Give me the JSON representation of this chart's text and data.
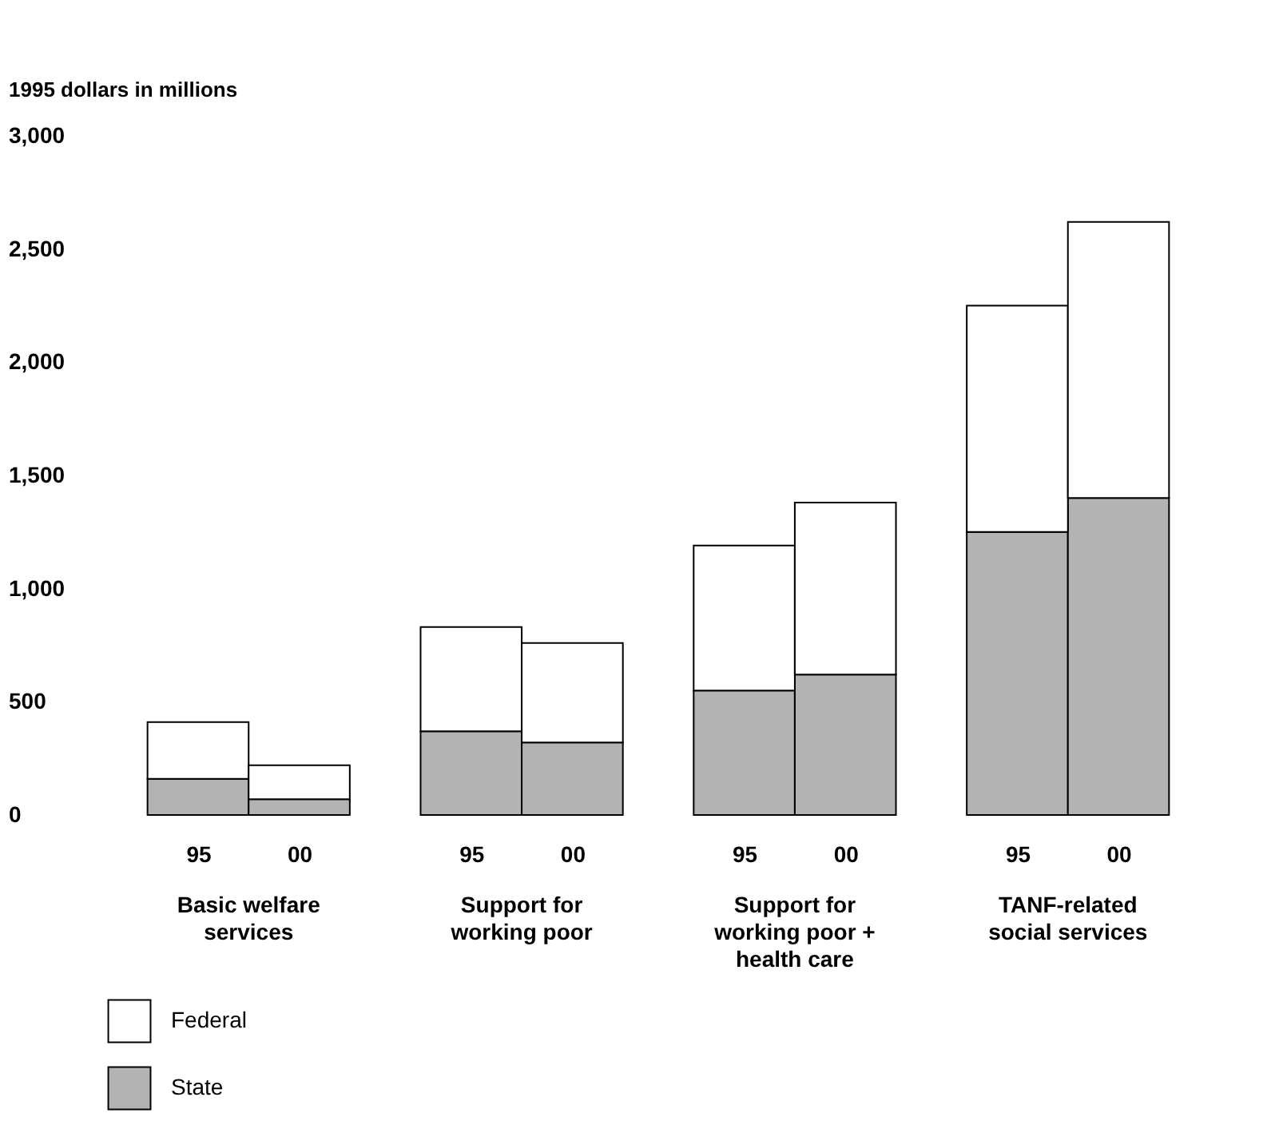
{
  "chart_data": {
    "type": "bar",
    "ylabel": "1995 dollars in millions",
    "categories": [
      "95",
      "00",
      "95",
      "00",
      "95",
      "00",
      "95",
      "00"
    ],
    "series": [
      {
        "name": "State",
        "color": "#b3b3b3",
        "values": [
          160,
          70,
          370,
          320,
          550,
          620,
          1250,
          1400
        ]
      },
      {
        "name": "Federal",
        "color": "#ffffff",
        "values": [
          250,
          150,
          460,
          440,
          640,
          760,
          1000,
          1220
        ]
      }
    ],
    "stacked": true,
    "ylim": [
      0,
      3000
    ],
    "yticks": [
      {
        "value": 0,
        "label": "0"
      },
      {
        "value": 500,
        "label": "500"
      },
      {
        "value": 1000,
        "label": "1,000"
      },
      {
        "value": 1500,
        "label": "1,500"
      },
      {
        "value": 2000,
        "label": "2,000"
      },
      {
        "value": 2500,
        "label": "2,500"
      },
      {
        "value": 3000,
        "label": "3,000"
      }
    ],
    "annotations": [
      "Basic welfare services",
      "Support for working poor",
      "Support for working poor + health care",
      "TANF-related social services"
    ],
    "grid": false,
    "legend": "bottom left"
  }
}
